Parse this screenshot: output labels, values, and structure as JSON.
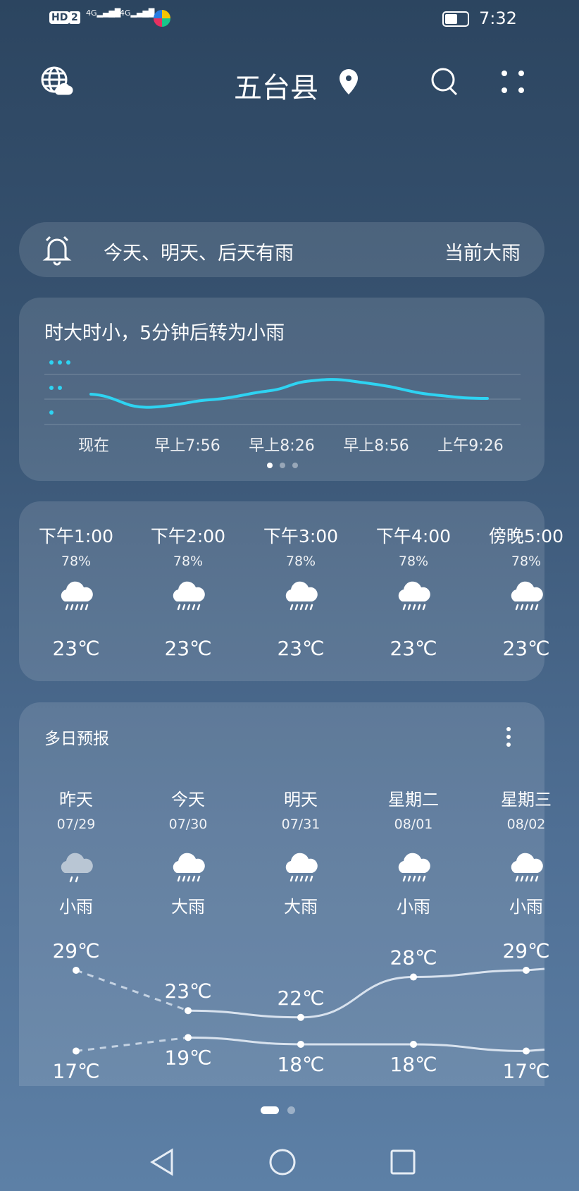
{
  "status_bar": {
    "left_icons": [
      "hd-icon",
      "sim2-icon",
      "4g-signal-icon",
      "4g-signal-icon",
      "app-icon"
    ],
    "time": "7:32",
    "battery_level": 0.5
  },
  "header": {
    "city": "五台县",
    "icons": [
      "globe-cloud-icon",
      "location-pin-icon",
      "search-icon",
      "more-icon"
    ]
  },
  "alert": {
    "text": "今天、明天、后天有雨",
    "current": "当前大雨"
  },
  "minute": {
    "title": "时大时小，5分钟后转为小雨",
    "labels": [
      "现在",
      "早上7:56",
      "早上8:26",
      "早上8:56",
      "上午9:26"
    ],
    "page_count": 3,
    "active_page": 0
  },
  "hourly": [
    {
      "time": "下午1:00",
      "humidity": "78%",
      "temp": "23℃",
      "icon": "heavy-rain-icon"
    },
    {
      "time": "下午2:00",
      "humidity": "78%",
      "temp": "23℃",
      "icon": "heavy-rain-icon"
    },
    {
      "time": "下午3:00",
      "humidity": "78%",
      "temp": "23℃",
      "icon": "heavy-rain-icon"
    },
    {
      "time": "下午4:00",
      "humidity": "78%",
      "temp": "23℃",
      "icon": "heavy-rain-icon"
    },
    {
      "time": "傍晚5:00",
      "humidity": "78%",
      "temp": "23℃",
      "icon": "heavy-rain-icon"
    }
  ],
  "daily": {
    "title": "多日预报",
    "days": [
      {
        "day": "昨天",
        "date": "07/29",
        "cond": "小雨",
        "high": "29℃",
        "low": "17℃",
        "hi": 29,
        "lo": 17
      },
      {
        "day": "今天",
        "date": "07/30",
        "cond": "大雨",
        "high": "23℃",
        "low": "19℃",
        "hi": 23,
        "lo": 19
      },
      {
        "day": "明天",
        "date": "07/31",
        "cond": "大雨",
        "high": "22℃",
        "low": "18℃",
        "hi": 22,
        "lo": 18
      },
      {
        "day": "星期二",
        "date": "08/01",
        "cond": "小雨",
        "high": "28℃",
        "low": "18℃",
        "hi": 28,
        "lo": 18
      },
      {
        "day": "星期三",
        "date": "08/02",
        "cond": "小雨",
        "high": "29℃",
        "low": "17℃",
        "hi": 29,
        "lo": 17
      }
    ]
  },
  "pager": {
    "count": 2,
    "active": 0
  },
  "colors": {
    "precip_line": "#2ed3f2",
    "temp_line": "#d8e2ee"
  }
}
